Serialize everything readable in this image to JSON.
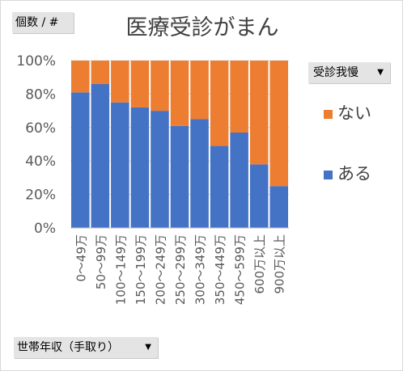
{
  "pivot_fields": {
    "values_label": "個数 / #",
    "legend_label": "受診我慢",
    "axis_label": "世帯年収（手取り）"
  },
  "colors": {
    "nai": "#ed7d31",
    "aru": "#4472c4"
  },
  "chart_data": {
    "type": "bar",
    "stacked": "percent",
    "title": "医療受診がまん",
    "categories": [
      "0～49万",
      "50～99万",
      "100～149万",
      "150～199万",
      "200～249万",
      "250～299万",
      "300～349万",
      "350～449万",
      "450～599万",
      "600万以上",
      "900万以上"
    ],
    "series": [
      {
        "name": "ある",
        "values": [
          81,
          86,
          75,
          72,
          70,
          61,
          65,
          49,
          57,
          38,
          25
        ]
      },
      {
        "name": "ない",
        "values": [
          19,
          14,
          25,
          28,
          30,
          39,
          35,
          51,
          43,
          62,
          75
        ]
      }
    ],
    "ylim": [
      0,
      100
    ],
    "yticks": [
      "0%",
      "20%",
      "40%",
      "60%",
      "80%",
      "100%"
    ],
    "grid": true,
    "legend_position": "right"
  }
}
